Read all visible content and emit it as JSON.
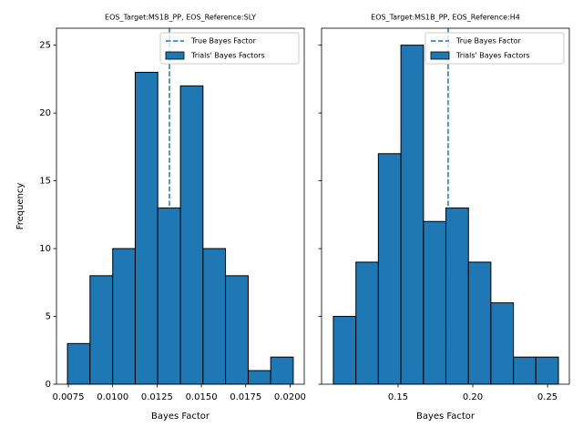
{
  "chart_data": [
    {
      "type": "histogram",
      "title": "EOS_Target:MS1B_PP, EOS_Reference:SLY",
      "xlabel": "Bayes Factor",
      "ylabel": "Frequency",
      "bins": [
        0.00745,
        0.00872,
        0.01,
        0.01127,
        0.01254,
        0.01382,
        0.01509,
        0.01636,
        0.01764,
        0.01891,
        0.02018
      ],
      "series": [
        {
          "name": "Trials' Bayes Factors",
          "color": "#1f77b4",
          "values": [
            3,
            8,
            10,
            23,
            13,
            22,
            10,
            8,
            1,
            2
          ]
        }
      ],
      "reference_line": {
        "name": "True Bayes Factor",
        "value": 0.0132,
        "color": "#1f77b4"
      },
      "xlim": [
        0.00683,
        0.0208
      ],
      "ylim": [
        0,
        26.25
      ],
      "xticks": [
        0.0075,
        {
          "value": 0.01,
          "label": "0.0100"
        },
        0.0125,
        {
          "value": 0.015,
          "label": "0.0150"
        },
        0.0175,
        {
          "value": 0.02,
          "label": "0.0200"
        }
      ],
      "yticks": [
        0,
        5,
        10,
        15,
        20,
        25
      ],
      "ytick_labels": true,
      "legend": "upper right"
    },
    {
      "type": "histogram",
      "title": "EOS_Target:MS1B_PP, EOS_Reference:H4",
      "xlabel": "Bayes Factor",
      "bins": [
        0.1067,
        0.1218,
        0.1368,
        0.1519,
        0.167,
        0.182,
        0.1971,
        0.2121,
        0.2272,
        0.2422,
        0.2573
      ],
      "series": [
        {
          "name": "Trials' Bayes Factors",
          "color": "#1f77b4",
          "values": [
            5,
            9,
            17,
            25,
            12,
            13,
            9,
            6,
            2,
            2
          ]
        }
      ],
      "reference_line": {
        "name": "True Bayes Factor",
        "value": 0.1835,
        "color": "#1f77b4"
      },
      "xlim": [
        0.0988,
        0.2646
      ],
      "ylim": [
        0,
        26.25
      ],
      "xticks": [
        0.15,
        {
          "value": 0.2,
          "label": "0.20"
        },
        0.25
      ],
      "yticks": [
        0,
        5,
        10,
        15,
        20,
        25
      ],
      "ytick_labels": false,
      "legend": "upper right"
    }
  ]
}
